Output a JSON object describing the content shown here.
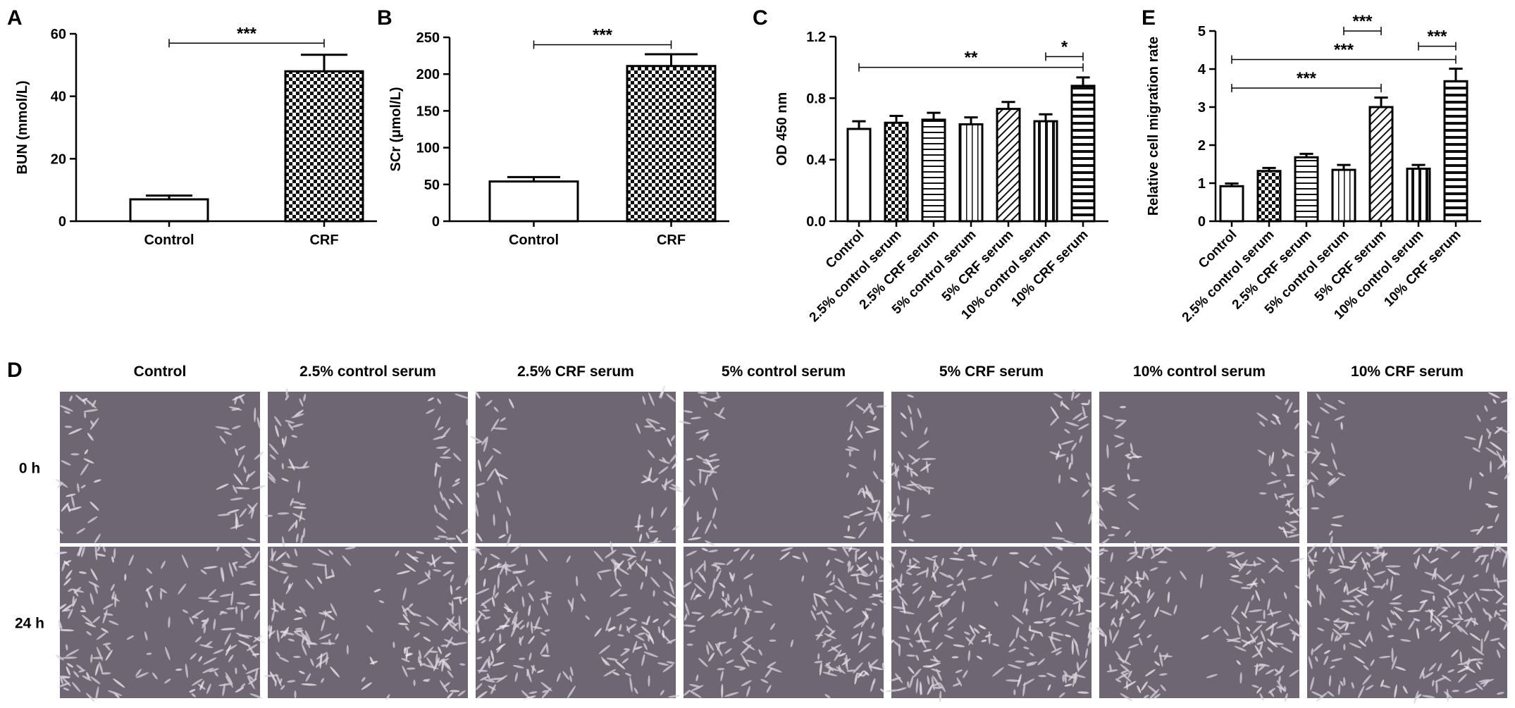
{
  "panels": {
    "A": {
      "letter": "A"
    },
    "B": {
      "letter": "B"
    },
    "C": {
      "letter": "C"
    },
    "D": {
      "letter": "D"
    },
    "E": {
      "letter": "E"
    }
  },
  "chart_data": [
    {
      "id": "A",
      "type": "bar",
      "ylabel": "BUN (mmol/L)",
      "ylim": [
        0,
        60
      ],
      "yticks": [
        0,
        20,
        40,
        60
      ],
      "categories": [
        "Control",
        "CRF"
      ],
      "values": [
        7,
        48
      ],
      "errors": [
        1.2,
        5.3
      ],
      "patterns": [
        "white",
        "checker"
      ],
      "significance": [
        {
          "from": 0,
          "to": 1,
          "label": "***",
          "y": 57
        }
      ]
    },
    {
      "id": "B",
      "type": "bar",
      "ylabel": "SCr (μmol/L)",
      "ylim": [
        0,
        250
      ],
      "yticks": [
        0,
        50,
        100,
        150,
        200,
        250
      ],
      "categories": [
        "Control",
        "CRF"
      ],
      "values": [
        54,
        211
      ],
      "errors": [
        6,
        16
      ],
      "patterns": [
        "white",
        "checker"
      ],
      "significance": [
        {
          "from": 0,
          "to": 1,
          "label": "***",
          "y": 240
        }
      ]
    },
    {
      "id": "C",
      "type": "bar",
      "ylabel": "OD 450 nm",
      "ylim": [
        0,
        1.2
      ],
      "yticks": [
        "0.0",
        "0.4",
        "0.8",
        "1.2"
      ],
      "categories": [
        "Control",
        "2.5% control serum",
        "2.5% CRF serum",
        "5% control serum",
        "5% CRF serum",
        "10% control serum",
        "10% CRF serum"
      ],
      "values": [
        0.6,
        0.64,
        0.66,
        0.63,
        0.73,
        0.65,
        0.88
      ],
      "errors": [
        0.05,
        0.045,
        0.045,
        0.045,
        0.045,
        0.045,
        0.055
      ],
      "patterns": [
        "white",
        "checker",
        "hstripe",
        "vstripe",
        "diag",
        "vstripe-bold",
        "hstripe-bold"
      ],
      "significance": [
        {
          "from": 0,
          "to": 6,
          "label": "**",
          "y": 1.0
        },
        {
          "from": 5,
          "to": 6,
          "label": "*",
          "y": 1.07
        }
      ]
    },
    {
      "id": "E",
      "type": "bar",
      "ylabel": "Relative cell migration rate",
      "ylim": [
        0,
        5
      ],
      "yticks": [
        0,
        1,
        2,
        3,
        4,
        5
      ],
      "categories": [
        "Control",
        "2.5% control serum",
        "2.5% CRF serum",
        "5% control serum",
        "5% CRF serum",
        "10% control serum",
        "10% CRF serum"
      ],
      "values": [
        0.92,
        1.32,
        1.68,
        1.35,
        3.0,
        1.38,
        3.68
      ],
      "errors": [
        0.07,
        0.08,
        0.09,
        0.13,
        0.25,
        0.1,
        0.33
      ],
      "patterns": [
        "white",
        "checker",
        "hstripe",
        "vstripe",
        "diag",
        "vstripe-bold",
        "hstripe-bold"
      ],
      "significance": [
        {
          "from": 3,
          "to": 4,
          "label": "***",
          "y": 5.0
        },
        {
          "from": 0,
          "to": 6,
          "label": "***",
          "y": 4.25
        },
        {
          "from": 5,
          "to": 6,
          "label": "***",
          "y": 4.6
        },
        {
          "from": 0,
          "to": 4,
          "label": "***",
          "y": 3.5
        }
      ]
    }
  ],
  "micrographs": {
    "column_labels": [
      "Control",
      "2.5% control serum",
      "2.5% CRF serum",
      "5% control serum",
      "5% CRF serum",
      "10% control serum",
      "10% CRF serum"
    ],
    "row_labels": [
      "0 h",
      "24 h"
    ],
    "background_color": "#6e6773",
    "cell_color": "#d8d2dc",
    "gap_closed_fraction_24h": [
      0.35,
      0.45,
      0.55,
      0.45,
      0.7,
      0.5,
      0.85
    ]
  }
}
